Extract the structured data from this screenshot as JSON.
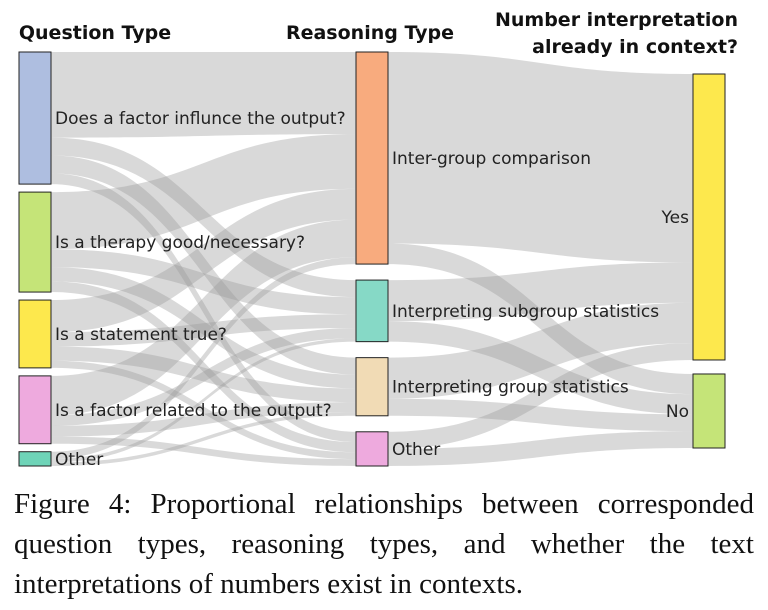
{
  "chart_data": {
    "type": "sankey",
    "columns": [
      {
        "title_lines": [
          "Question Type"
        ],
        "nodes": [
          {
            "name": "Does a factor influnce the output?",
            "value": 37,
            "color": "#aebee0"
          },
          {
            "name": "Is a therapy good/necessary?",
            "value": 28,
            "color": "#c5e478"
          },
          {
            "name": "Is a statement true?",
            "value": 19,
            "color": "#fde84d"
          },
          {
            "name": "Is a factor related to the output?",
            "value": 19,
            "color": "#eeaade"
          },
          {
            "name": "Other",
            "value": 4,
            "color": "#6fd4b8"
          }
        ]
      },
      {
        "title_lines": [
          "Reasoning Type"
        ],
        "nodes": [
          {
            "name": "Inter-group comparison",
            "value": 62,
            "color": "#f8ab7e"
          },
          {
            "name": "Interpreting subgroup statistics",
            "value": 18,
            "color": "#86d9c6"
          },
          {
            "name": "Interpreting group statistics",
            "value": 17,
            "color": "#f1dbb5"
          },
          {
            "name": "Other",
            "value": 10,
            "color": "#eeaade"
          }
        ]
      },
      {
        "title_lines": [
          "Number interpretation",
          "already in context?"
        ],
        "nodes": [
          {
            "name": "Yes",
            "value": 85,
            "color": "#fde84d"
          },
          {
            "name": "No",
            "value": 22,
            "color": "#c5e478"
          }
        ]
      }
    ],
    "links": [
      {
        "source": [
          0,
          0
        ],
        "target": [
          1,
          0
        ],
        "value": 24
      },
      {
        "source": [
          0,
          0
        ],
        "target": [
          1,
          1
        ],
        "value": 5
      },
      {
        "source": [
          0,
          0
        ],
        "target": [
          1,
          2
        ],
        "value": 5
      },
      {
        "source": [
          0,
          0
        ],
        "target": [
          1,
          3
        ],
        "value": 3
      },
      {
        "source": [
          0,
          1
        ],
        "target": [
          1,
          0
        ],
        "value": 16
      },
      {
        "source": [
          0,
          1
        ],
        "target": [
          1,
          1
        ],
        "value": 5
      },
      {
        "source": [
          0,
          1
        ],
        "target": [
          1,
          2
        ],
        "value": 4
      },
      {
        "source": [
          0,
          1
        ],
        "target": [
          1,
          3
        ],
        "value": 3
      },
      {
        "source": [
          0,
          2
        ],
        "target": [
          1,
          0
        ],
        "value": 9
      },
      {
        "source": [
          0,
          2
        ],
        "target": [
          1,
          1
        ],
        "value": 4
      },
      {
        "source": [
          0,
          2
        ],
        "target": [
          1,
          2
        ],
        "value": 4
      },
      {
        "source": [
          0,
          2
        ],
        "target": [
          1,
          3
        ],
        "value": 2
      },
      {
        "source": [
          0,
          3
        ],
        "target": [
          1,
          0
        ],
        "value": 11
      },
      {
        "source": [
          0,
          3
        ],
        "target": [
          1,
          1
        ],
        "value": 3
      },
      {
        "source": [
          0,
          3
        ],
        "target": [
          1,
          2
        ],
        "value": 3
      },
      {
        "source": [
          0,
          3
        ],
        "target": [
          1,
          3
        ],
        "value": 2
      },
      {
        "source": [
          0,
          4
        ],
        "target": [
          1,
          0
        ],
        "value": 2
      },
      {
        "source": [
          0,
          4
        ],
        "target": [
          1,
          1
        ],
        "value": 1
      },
      {
        "source": [
          0,
          4
        ],
        "target": [
          1,
          2
        ],
        "value": 1
      },
      {
        "source": [
          1,
          0
        ],
        "target": [
          2,
          0
        ],
        "value": 56
      },
      {
        "source": [
          1,
          0
        ],
        "target": [
          2,
          1
        ],
        "value": 6
      },
      {
        "source": [
          1,
          1
        ],
        "target": [
          2,
          0
        ],
        "value": 12
      },
      {
        "source": [
          1,
          1
        ],
        "target": [
          2,
          1
        ],
        "value": 6
      },
      {
        "source": [
          1,
          2
        ],
        "target": [
          2,
          0
        ],
        "value": 12
      },
      {
        "source": [
          1,
          2
        ],
        "target": [
          2,
          1
        ],
        "value": 5
      },
      {
        "source": [
          1,
          3
        ],
        "target": [
          2,
          0
        ],
        "value": 5
      },
      {
        "source": [
          1,
          3
        ],
        "target": [
          2,
          1
        ],
        "value": 5
      }
    ]
  },
  "caption": "Figure 4: Proportional relationships between corresponded question types, reasoning types, and whether the text interpretations of numbers exist in contexts."
}
